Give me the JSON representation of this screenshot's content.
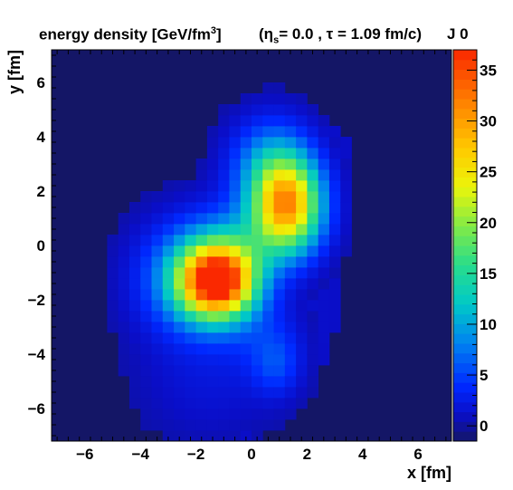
{
  "header": {
    "quantity": "energy density [GeV/fm",
    "quantity_sup": "3",
    "quantity_close": "]",
    "eta_symbol": "η",
    "eta_sub": "s",
    "params": "= 0.0 , τ = 1.09 fm/c)",
    "open_paren": "(",
    "label_right": "J 0"
  },
  "chart_data": {
    "type": "heatmap",
    "title": "energy density [GeV/fm3]  (ηs = 0.0 , τ = 1.09 fm/c)",
    "xlabel": "x [fm]",
    "ylabel": "y [fm]",
    "xlim": [
      -7.2,
      7.2
    ],
    "ylim": [
      -7.2,
      7.2
    ],
    "x_ticks": [
      -6,
      -4,
      -2,
      0,
      2,
      4,
      6
    ],
    "y_ticks": [
      -6,
      -4,
      -2,
      0,
      2,
      4,
      6
    ],
    "x_tick_labels": [
      "−6",
      "−4",
      "−2",
      "0",
      "2",
      "4",
      "6"
    ],
    "y_tick_labels": [
      "−6",
      "−4",
      "−2",
      "0",
      "2",
      "4",
      "6"
    ],
    "bin_size_fm": 0.4,
    "background_value": -1.5,
    "colorbar": {
      "min": -1.5,
      "max": 37,
      "ticks": [
        0,
        5,
        10,
        15,
        20,
        25,
        30,
        35
      ],
      "tick_labels": [
        "0",
        "5",
        "10",
        "15",
        "20",
        "25",
        "30",
        "35"
      ]
    },
    "sources": [
      {
        "type": "peak",
        "x": -1.2,
        "y": -1.3,
        "amp": 36,
        "sx": 0.95,
        "sy": 0.95
      },
      {
        "type": "peak",
        "x": 1.3,
        "y": 1.5,
        "amp": 27,
        "sx": 0.85,
        "sy": 1.15
      },
      {
        "type": "peak",
        "x": -2.2,
        "y": -1.2,
        "amp": 9,
        "sx": 1.3,
        "sy": 1.4
      },
      {
        "type": "peak",
        "x": 0.7,
        "y": 2.9,
        "amp": 9,
        "sx": 1.0,
        "sy": 1.2
      },
      {
        "type": "peak",
        "x": 0.0,
        "y": 0.2,
        "amp": 6,
        "sx": 1.3,
        "sy": 1.0
      },
      {
        "type": "peak",
        "x": 0.9,
        "y": -4.4,
        "amp": 4,
        "sx": 0.6,
        "sy": 0.8
      },
      {
        "type": "peak",
        "x": -1.5,
        "y": -5.0,
        "amp": 1.8,
        "sx": 1.8,
        "sy": 1.5
      },
      {
        "type": "peak",
        "x": 0.5,
        "y": -3.3,
        "amp": 2.5,
        "sx": 1.0,
        "sy": 1.0
      },
      {
        "type": "plateau",
        "x": -1.3,
        "y": -5.4,
        "amp": 1.0,
        "sx": 2.0,
        "sy": 1.7
      },
      {
        "type": "plateau",
        "x": 0.2,
        "y": -2.2,
        "amp": 1.0,
        "sx": 2.7,
        "sy": 3.3
      },
      {
        "type": "plateau",
        "x": 1.3,
        "y": 2.4,
        "amp": 1.0,
        "sx": 2.2,
        "sy": 2.8
      }
    ]
  }
}
